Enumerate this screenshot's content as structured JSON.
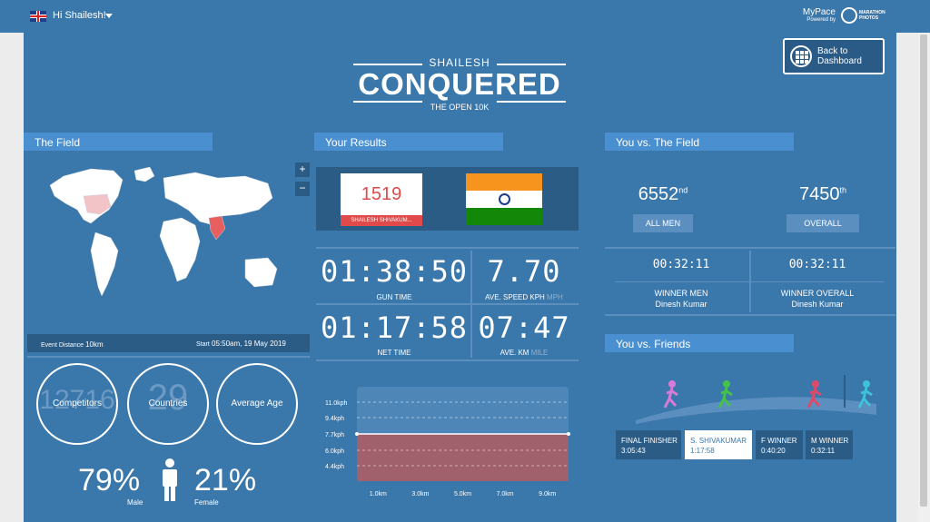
{
  "header": {
    "greeting": "Hi Shailesh!",
    "brand": "MyPace",
    "brand_sub": "Powered by",
    "partner": "MARATHON PHOTOS"
  },
  "back": {
    "label": "Back to Dashboard"
  },
  "hero": {
    "name": "SHAILESH",
    "title": "CONQUERED",
    "event": "THE OPEN 10K"
  },
  "field": {
    "heading": "The Field",
    "zoom_in": "+",
    "zoom_out": "−",
    "distance_label": "Event Distance",
    "distance_value": "10km",
    "start_label": "Start",
    "start_value": "05:50am, 19 May 2019",
    "competitors_value": "12716",
    "competitors_label": "Competitors",
    "countries_value": "29",
    "countries_label": "Countries",
    "avg_age_label": "Average Age",
    "male_pct": "79%",
    "male_label": "Male",
    "female_pct": "21%",
    "female_label": "Female"
  },
  "results": {
    "heading": "Your Results",
    "bib_number": "1519",
    "bib_name": "SHAILESH SHIVAKUM...",
    "gun_time": "01:38:50",
    "gun_time_label": "GUN TIME",
    "ave_speed": "7.70",
    "ave_speed_label": "AVE. SPEED KPH",
    "ave_speed_alt": "MPH",
    "net_time": "01:17:58",
    "net_time_label": "NET TIME",
    "ave_km": "07:47",
    "ave_km_label": "AVE. KM",
    "ave_km_alt": "MILE"
  },
  "chart_data": {
    "type": "line",
    "y_tick_labels": [
      "11.0kph",
      "9.4kph",
      "7.7kph",
      "6.0kph",
      "4.4kph"
    ],
    "y_ticks": [
      11.0,
      9.4,
      7.7,
      6.0,
      4.4
    ],
    "x_tick_labels": [
      "1.0km",
      "3.0km",
      "5.0km",
      "7.0km",
      "9.0km"
    ],
    "x_ticks": [
      1.0,
      3.0,
      5.0,
      7.0,
      9.0
    ],
    "series": [
      {
        "x": [
          0.0,
          10.0
        ],
        "values": [
          7.7,
          7.7
        ]
      }
    ],
    "ylim": [
      2.8,
      12.6
    ],
    "xlim": [
      0.0,
      10.0
    ],
    "grid": true,
    "colors": {
      "line": "#ffffff",
      "fill": "#a0616d",
      "plot_bg": "#4f86b8"
    }
  },
  "vsfield": {
    "heading": "You vs. The Field",
    "men_rank": "6552",
    "men_suffix": "nd",
    "men_label": "ALL MEN",
    "overall_rank": "7450",
    "overall_suffix": "th",
    "overall_label": "OVERALL",
    "winner_men_time": "00:32:11",
    "winner_overall_time": "00:32:11",
    "winner_men_label": "WINNER MEN",
    "winner_men_name": "Dinesh Kumar",
    "winner_overall_label": "WINNER OVERALL",
    "winner_overall_name": "Dinesh Kumar"
  },
  "friends": {
    "heading": "You vs. Friends",
    "boxes": [
      {
        "label": "FINAL FINISHER",
        "time": "3:05:43"
      },
      {
        "label": "S. SHIVAKUMAR",
        "time": "1:17:58"
      },
      {
        "label": "F WINNER",
        "time": "0:40:20"
      },
      {
        "label": "M WINNER",
        "time": "0:32:11"
      }
    ]
  },
  "colors": {
    "bg": "#3a77aa",
    "panel": "#2b5c86",
    "accent": "#4a90d0",
    "badge": "#e04a4a"
  }
}
